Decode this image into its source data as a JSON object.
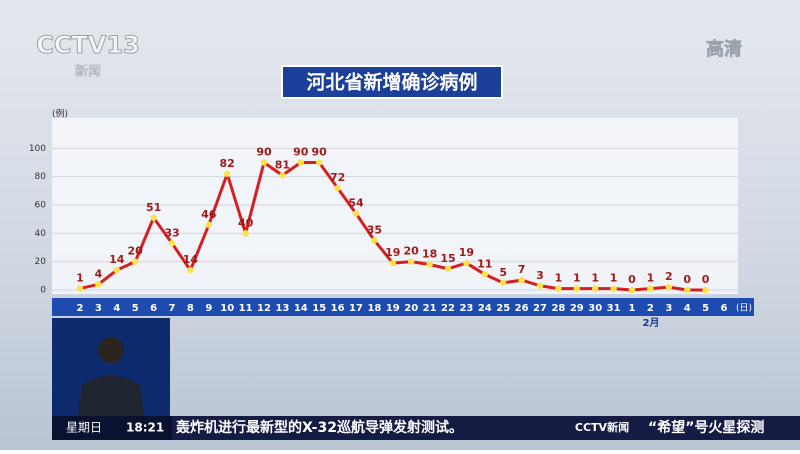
{
  "screen": {
    "logo": "CCTV13",
    "logo_sub": "新闻",
    "hd": "高清",
    "ticker_day": "星期日",
    "ticker_time": "18:21",
    "ticker_text": "轰炸机进行最新型的X-32巡航导弹发射测试。",
    "ticker_logo": "CCTV新闻",
    "ticker_next": "“希望”号火星探测"
  },
  "chart_data": {
    "type": "line",
    "title": "河北省新增确诊病例",
    "y_unit": "(例)",
    "x_unit": "(日)",
    "month_label": "2月",
    "categories": [
      "2",
      "3",
      "4",
      "5",
      "6",
      "7",
      "8",
      "9",
      "10",
      "11",
      "12",
      "13",
      "14",
      "15",
      "16",
      "17",
      "18",
      "19",
      "20",
      "21",
      "22",
      "23",
      "24",
      "25",
      "26",
      "27",
      "28",
      "29",
      "30",
      "31",
      "1",
      "2",
      "3",
      "4",
      "5",
      "6"
    ],
    "series": [
      {
        "color": "#d42020",
        "values": [
          1,
          4,
          14,
          20,
          51,
          33,
          14,
          46,
          82,
          40,
          90,
          81,
          90,
          90,
          72,
          54,
          35,
          19,
          20,
          18,
          15,
          19,
          11,
          5,
          7,
          3,
          1,
          1,
          1,
          1,
          0,
          1,
          2,
          0,
          0,
          null
        ]
      }
    ],
    "ylim": [
      0,
      120
    ],
    "yticks": [
      0,
      20,
      40,
      60,
      80,
      100
    ],
    "grid": true
  }
}
